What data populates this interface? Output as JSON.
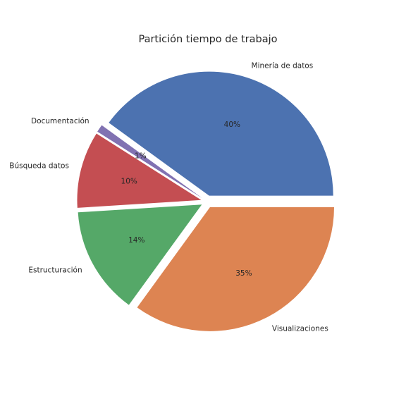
{
  "chart_data": {
    "type": "pie",
    "title": "Partición tiempo de trabajo",
    "categories": [
      "Minería de datos",
      "Documentación",
      "Búsqueda datos",
      "Estructuración",
      "Visualizaciones"
    ],
    "values": [
      40,
      1,
      10,
      14,
      35
    ],
    "percent_labels": [
      "40%",
      "1%",
      "10%",
      "14%",
      "35%"
    ],
    "colors": [
      "#4c72b0",
      "#8172b2",
      "#c44e52",
      "#55a868",
      "#dd8452"
    ],
    "explode": [
      0.05,
      0.05,
      0.05,
      0.05,
      0.05
    ],
    "grid": false,
    "legend": "none"
  }
}
